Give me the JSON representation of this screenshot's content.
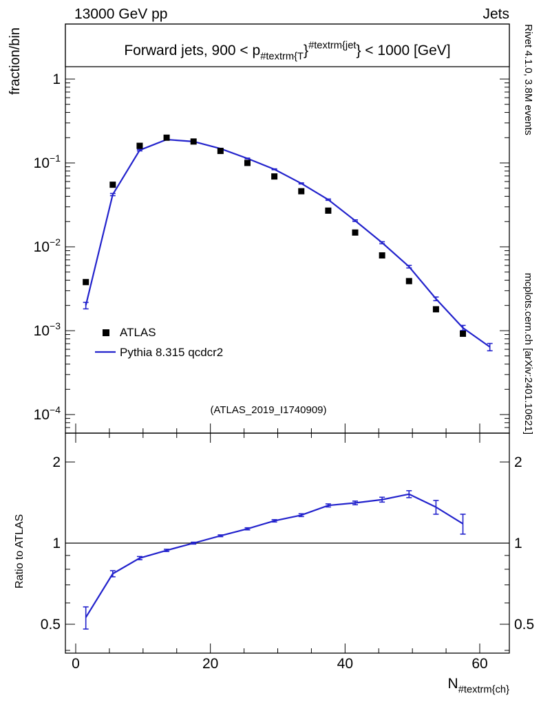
{
  "header": {
    "left": "13000 GeV pp",
    "right": "Jets"
  },
  "panel_title": {
    "plain": "Forward jets, 900 < pT^{jet} < 1000 [GeV]",
    "parts": [
      {
        "text": "Forward jets, 900 < p",
        "style": "normal"
      },
      {
        "text": "#textrm{T",
        "style": "sub"
      },
      {
        "text": "}",
        "style": "normal"
      },
      {
        "text": "#textrm{jet",
        "style": "sup"
      },
      {
        "text": "}",
        "style": "normal"
      },
      {
        "text": " < 1000 [GeV]",
        "style": "normal"
      }
    ]
  },
  "axes": {
    "main_ylabel": "fraction/bin",
    "ratio_ylabel": "Ratio to ATLAS",
    "xlabel_parts": [
      {
        "text": "N",
        "style": "normal"
      },
      {
        "text": "#textrm{ch}",
        "style": "sub"
      }
    ],
    "x_tick_labels": [
      "0",
      "20",
      "40",
      "60"
    ],
    "main_y_tick_labels": [
      "1",
      "10^-1",
      "10^-2",
      "10^-3",
      "10^-4"
    ],
    "ratio_tick_labels": [
      "2",
      "1",
      "0.5"
    ]
  },
  "side_notes": {
    "top_right": "Rivet 4.1.0,  3.8M events",
    "bottom_right": "mcplots.cern.ch [arXiv:2401.10621]"
  },
  "watermark": "(ATLAS_2019_I1740909)",
  "legend": [
    {
      "label": "ATLAS",
      "marker": "filled-square",
      "color": "#000000"
    },
    {
      "label": "Pythia 8.315 qcdcr2",
      "marker": "line",
      "color": "#2222cc"
    }
  ],
  "colors": {
    "mc_blue": "#2222cc",
    "data_black": "#000000",
    "note_gray": "#979797",
    "watermark_gray": "#b4b4b4"
  },
  "chart_data": [
    {
      "panel": "main",
      "type": "line",
      "title": "Forward jets, 900 < pT^{jet} < 1000 [GeV]",
      "xlabel": "N_ch",
      "ylabel": "fraction/bin",
      "xscale": "linear",
      "yscale": "log",
      "xlim": [
        -1.5,
        64.5
      ],
      "ylim": [
        6e-05,
        4.5
      ],
      "xticks_major": [
        0,
        20,
        40,
        60
      ],
      "xticks_minor_step": 5,
      "yticks_major": [
        1,
        0.1,
        0.01,
        0.001,
        0.0001
      ],
      "legend_position": "left-middle",
      "grid": false,
      "series": [
        {
          "name": "ATLAS",
          "type": "scatter",
          "marker": "filled-square",
          "color": "#000000",
          "x": [
            1.5,
            5.5,
            9.5,
            13.5,
            17.5,
            21.5,
            25.5,
            29.5,
            33.5,
            37.5,
            41.5,
            45.5,
            49.5,
            53.5,
            57.5
          ],
          "y": [
            0.0038,
            0.055,
            0.16,
            0.2,
            0.18,
            0.139,
            0.1,
            0.069,
            0.046,
            0.027,
            0.0148,
            0.0079,
            0.0039,
            0.0018,
            0.00092
          ]
        },
        {
          "name": "Pythia 8.315 qcdcr2",
          "type": "line",
          "color": "#2222cc",
          "x": [
            1.5,
            5.5,
            9.5,
            13.5,
            17.5,
            21.5,
            25.5,
            29.5,
            33.5,
            37.5,
            41.5,
            45.5,
            49.5,
            53.5,
            57.5,
            61.5
          ],
          "y": [
            0.002,
            0.042,
            0.142,
            0.19,
            0.18,
            0.148,
            0.113,
            0.084,
            0.057,
            0.0365,
            0.0205,
            0.0112,
            0.0058,
            0.0024,
            0.00108,
            0.00064
          ],
          "yerr_frac": [
            0.09,
            0.03,
            0.02,
            0.012,
            0.01,
            0.01,
            0.01,
            0.012,
            0.015,
            0.018,
            0.022,
            0.028,
            0.035,
            0.05,
            0.07,
            0.1
          ]
        }
      ]
    },
    {
      "panel": "ratio",
      "type": "line",
      "ylabel": "Ratio to ATLAS",
      "yscale": "log",
      "ylim": [
        0.39,
        2.56
      ],
      "yticks_major": [
        0.5,
        1,
        2
      ],
      "yticks_minor": [
        0.4,
        0.6,
        0.7,
        0.8,
        0.9
      ],
      "refline": 1,
      "series": [
        {
          "name": "Pythia 8.315 qcdcr2 / ATLAS",
          "type": "line",
          "color": "#2222cc",
          "x": [
            1.5,
            5.5,
            9.5,
            13.5,
            17.5,
            21.5,
            25.5,
            29.5,
            33.5,
            37.5,
            41.5,
            45.5,
            49.5,
            53.5,
            57.5
          ],
          "y": [
            0.53,
            0.77,
            0.88,
            0.94,
            1.0,
            1.065,
            1.13,
            1.21,
            1.27,
            1.38,
            1.41,
            1.45,
            1.52,
            1.36,
            1.18
          ],
          "yerr": [
            0.05,
            0.02,
            0.012,
            0.009,
            0.008,
            0.008,
            0.01,
            0.012,
            0.015,
            0.018,
            0.022,
            0.03,
            0.045,
            0.08,
            0.1
          ]
        }
      ]
    }
  ]
}
